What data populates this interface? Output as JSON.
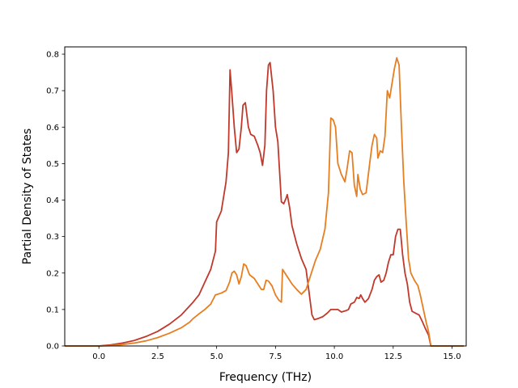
{
  "chart_data": {
    "type": "line",
    "title": "",
    "xlabel": "Frequency (THz)",
    "ylabel": "Partial Density of States",
    "xlim": [
      -1.45,
      15.6
    ],
    "ylim": [
      0,
      0.82
    ],
    "xticks": [
      0.0,
      2.5,
      5.0,
      7.5,
      10.0,
      12.5,
      15.0
    ],
    "xtick_labels": [
      "0.0",
      "2.5",
      "5.0",
      "7.5",
      "10.0",
      "12.5",
      "15.0"
    ],
    "yticks": [
      0.0,
      0.1,
      0.2,
      0.3,
      0.4,
      0.5,
      0.6,
      0.7,
      0.8
    ],
    "ytick_labels": [
      "0.0",
      "0.1",
      "0.2",
      "0.3",
      "0.4",
      "0.5",
      "0.6",
      "0.7",
      "0.8"
    ],
    "grid": false,
    "legend": "none",
    "series": [
      {
        "color": "#c0392b",
        "points": [
          [
            -1.45,
            0.0
          ],
          [
            0.0,
            0.0
          ],
          [
            0.5,
            0.003
          ],
          [
            1.0,
            0.008
          ],
          [
            1.5,
            0.015
          ],
          [
            2.0,
            0.026
          ],
          [
            2.5,
            0.04
          ],
          [
            3.0,
            0.06
          ],
          [
            3.5,
            0.085
          ],
          [
            4.0,
            0.12
          ],
          [
            4.25,
            0.14
          ],
          [
            4.5,
            0.175
          ],
          [
            4.75,
            0.21
          ],
          [
            4.95,
            0.26
          ],
          [
            5.0,
            0.34
          ],
          [
            5.2,
            0.37
          ],
          [
            5.4,
            0.45
          ],
          [
            5.5,
            0.53
          ],
          [
            5.57,
            0.757
          ],
          [
            5.65,
            0.69
          ],
          [
            5.75,
            0.6
          ],
          [
            5.85,
            0.53
          ],
          [
            5.95,
            0.54
          ],
          [
            6.05,
            0.6
          ],
          [
            6.12,
            0.66
          ],
          [
            6.22,
            0.667
          ],
          [
            6.35,
            0.6
          ],
          [
            6.45,
            0.58
          ],
          [
            6.6,
            0.575
          ],
          [
            6.75,
            0.55
          ],
          [
            6.85,
            0.53
          ],
          [
            6.95,
            0.495
          ],
          [
            7.05,
            0.55
          ],
          [
            7.12,
            0.7
          ],
          [
            7.2,
            0.77
          ],
          [
            7.27,
            0.777
          ],
          [
            7.4,
            0.7
          ],
          [
            7.5,
            0.6
          ],
          [
            7.6,
            0.56
          ],
          [
            7.7,
            0.45
          ],
          [
            7.75,
            0.395
          ],
          [
            7.85,
            0.39
          ],
          [
            7.95,
            0.405
          ],
          [
            8.0,
            0.415
          ],
          [
            8.1,
            0.38
          ],
          [
            8.2,
            0.33
          ],
          [
            8.4,
            0.28
          ],
          [
            8.6,
            0.24
          ],
          [
            8.8,
            0.21
          ],
          [
            8.9,
            0.16
          ],
          [
            9.05,
            0.085
          ],
          [
            9.15,
            0.072
          ],
          [
            9.3,
            0.075
          ],
          [
            9.5,
            0.08
          ],
          [
            9.7,
            0.09
          ],
          [
            9.85,
            0.1
          ],
          [
            10.0,
            0.1
          ],
          [
            10.15,
            0.1
          ],
          [
            10.3,
            0.093
          ],
          [
            10.5,
            0.097
          ],
          [
            10.6,
            0.1
          ],
          [
            10.7,
            0.115
          ],
          [
            10.85,
            0.12
          ],
          [
            10.95,
            0.133
          ],
          [
            11.05,
            0.13
          ],
          [
            11.12,
            0.14
          ],
          [
            11.2,
            0.13
          ],
          [
            11.3,
            0.12
          ],
          [
            11.45,
            0.13
          ],
          [
            11.6,
            0.155
          ],
          [
            11.7,
            0.18
          ],
          [
            11.8,
            0.19
          ],
          [
            11.9,
            0.195
          ],
          [
            11.98,
            0.175
          ],
          [
            12.1,
            0.18
          ],
          [
            12.2,
            0.2
          ],
          [
            12.3,
            0.23
          ],
          [
            12.4,
            0.25
          ],
          [
            12.5,
            0.25
          ],
          [
            12.6,
            0.3
          ],
          [
            12.7,
            0.32
          ],
          [
            12.8,
            0.32
          ],
          [
            12.9,
            0.25
          ],
          [
            13.0,
            0.2
          ],
          [
            13.1,
            0.17
          ],
          [
            13.2,
            0.12
          ],
          [
            13.3,
            0.095
          ],
          [
            13.45,
            0.09
          ],
          [
            13.6,
            0.085
          ],
          [
            13.75,
            0.065
          ],
          [
            13.85,
            0.05
          ],
          [
            14.0,
            0.03
          ],
          [
            14.1,
            0.0
          ],
          [
            15.5,
            0.0
          ]
        ]
      },
      {
        "color": "#e67e22",
        "points": [
          [
            -1.45,
            0.0
          ],
          [
            0.0,
            0.0
          ],
          [
            0.5,
            0.001
          ],
          [
            1.0,
            0.004
          ],
          [
            1.5,
            0.008
          ],
          [
            2.0,
            0.014
          ],
          [
            2.5,
            0.023
          ],
          [
            3.0,
            0.035
          ],
          [
            3.5,
            0.05
          ],
          [
            3.85,
            0.065
          ],
          [
            4.0,
            0.075
          ],
          [
            4.25,
            0.088
          ],
          [
            4.5,
            0.1
          ],
          [
            4.75,
            0.115
          ],
          [
            4.95,
            0.14
          ],
          [
            5.2,
            0.145
          ],
          [
            5.4,
            0.152
          ],
          [
            5.55,
            0.175
          ],
          [
            5.65,
            0.2
          ],
          [
            5.75,
            0.205
          ],
          [
            5.85,
            0.195
          ],
          [
            5.95,
            0.17
          ],
          [
            6.05,
            0.19
          ],
          [
            6.15,
            0.225
          ],
          [
            6.25,
            0.22
          ],
          [
            6.4,
            0.195
          ],
          [
            6.6,
            0.185
          ],
          [
            6.8,
            0.165
          ],
          [
            6.9,
            0.155
          ],
          [
            7.0,
            0.155
          ],
          [
            7.1,
            0.18
          ],
          [
            7.2,
            0.178
          ],
          [
            7.35,
            0.165
          ],
          [
            7.5,
            0.14
          ],
          [
            7.65,
            0.125
          ],
          [
            7.75,
            0.12
          ],
          [
            7.8,
            0.21
          ],
          [
            7.9,
            0.2
          ],
          [
            8.0,
            0.19
          ],
          [
            8.2,
            0.17
          ],
          [
            8.4,
            0.155
          ],
          [
            8.6,
            0.142
          ],
          [
            8.8,
            0.155
          ],
          [
            9.0,
            0.195
          ],
          [
            9.2,
            0.235
          ],
          [
            9.4,
            0.265
          ],
          [
            9.6,
            0.32
          ],
          [
            9.75,
            0.42
          ],
          [
            9.85,
            0.625
          ],
          [
            9.95,
            0.62
          ],
          [
            10.05,
            0.6
          ],
          [
            10.15,
            0.5
          ],
          [
            10.3,
            0.47
          ],
          [
            10.45,
            0.45
          ],
          [
            10.55,
            0.49
          ],
          [
            10.65,
            0.535
          ],
          [
            10.75,
            0.53
          ],
          [
            10.85,
            0.44
          ],
          [
            10.95,
            0.41
          ],
          [
            11.0,
            0.47
          ],
          [
            11.1,
            0.43
          ],
          [
            11.2,
            0.415
          ],
          [
            11.35,
            0.42
          ],
          [
            11.5,
            0.5
          ],
          [
            11.6,
            0.55
          ],
          [
            11.7,
            0.58
          ],
          [
            11.8,
            0.57
          ],
          [
            11.85,
            0.515
          ],
          [
            11.95,
            0.535
          ],
          [
            12.05,
            0.53
          ],
          [
            12.15,
            0.575
          ],
          [
            12.25,
            0.7
          ],
          [
            12.35,
            0.68
          ],
          [
            12.45,
            0.72
          ],
          [
            12.55,
            0.76
          ],
          [
            12.65,
            0.79
          ],
          [
            12.75,
            0.77
          ],
          [
            12.85,
            0.6
          ],
          [
            12.95,
            0.45
          ],
          [
            13.05,
            0.34
          ],
          [
            13.15,
            0.24
          ],
          [
            13.25,
            0.2
          ],
          [
            13.4,
            0.18
          ],
          [
            13.55,
            0.165
          ],
          [
            13.65,
            0.14
          ],
          [
            13.75,
            0.11
          ],
          [
            13.9,
            0.065
          ],
          [
            14.0,
            0.04
          ],
          [
            14.1,
            0.0
          ],
          [
            15.5,
            0.0
          ]
        ]
      }
    ]
  }
}
